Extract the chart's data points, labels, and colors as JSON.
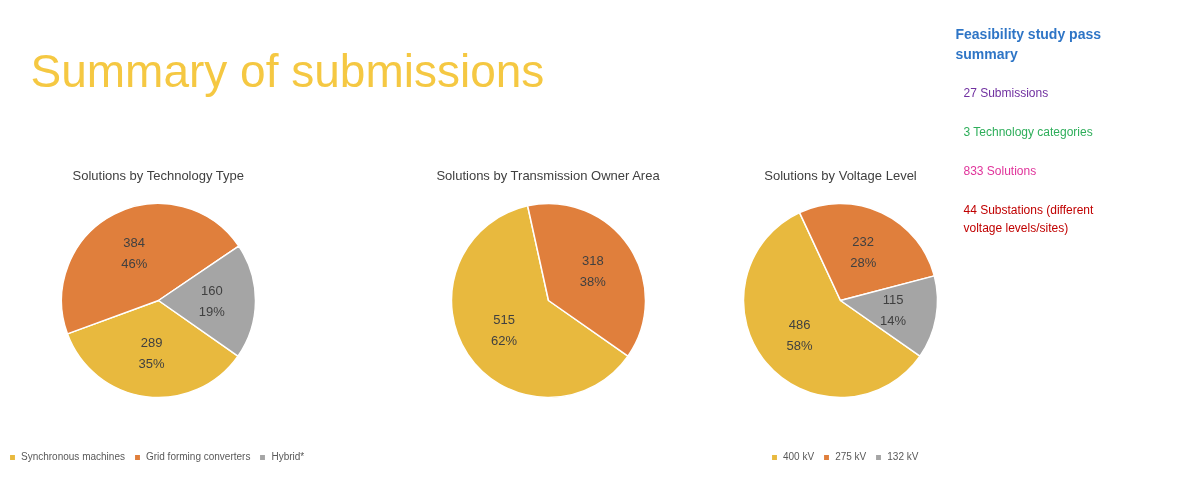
{
  "chart_data": [
    {
      "type": "other",
      "title": "Summary of submissions",
      "color": "#f5c842"
    },
    {
      "type": "pie",
      "title": "Solutions by Technology Type",
      "categories": [
        "Synchronous machines",
        "Grid forming converters",
        "Hybrid*"
      ],
      "values": [
        289,
        384,
        160
      ],
      "colors": [
        "#e8b93e",
        "#e07f3c",
        "#a5a5a5"
      ],
      "value_labels": [
        "289\n35%",
        "384\n46%",
        "160\n19%"
      ],
      "legend": "bottom"
    },
    {
      "type": "pie",
      "title": "Solutions by Transmission Owner Area",
      "categories": [
        null,
        null
      ],
      "values": [
        515,
        318
      ],
      "colors": [
        "#e8b93e",
        "#e07f3c"
      ],
      "value_labels": [
        "515\n62%",
        "318\n38%"
      ]
    },
    {
      "type": "pie",
      "title": "Solutions by Voltage Level",
      "categories": [
        "400 kV",
        "275 kV",
        "132 kV"
      ],
      "values": [
        486,
        232,
        115
      ],
      "colors": [
        "#e8b93e",
        "#e07f3c",
        "#a5a5a5"
      ],
      "value_labels": [
        "486\n58%",
        "232\n28%",
        "115\n14%"
      ],
      "legend": "bottom"
    },
    {
      "type": "other",
      "title": "Feasibility study pass summary",
      "color": "#2e75c6",
      "annotations": [
        "27 Submissions",
        "3 Technology categories",
        "833 Solutions",
        "44 Substations (different voltage levels/sites)"
      ],
      "colors": [
        "#7030a0",
        "#2eae5a",
        "#e0339a",
        "#c00000"
      ]
    }
  ]
}
